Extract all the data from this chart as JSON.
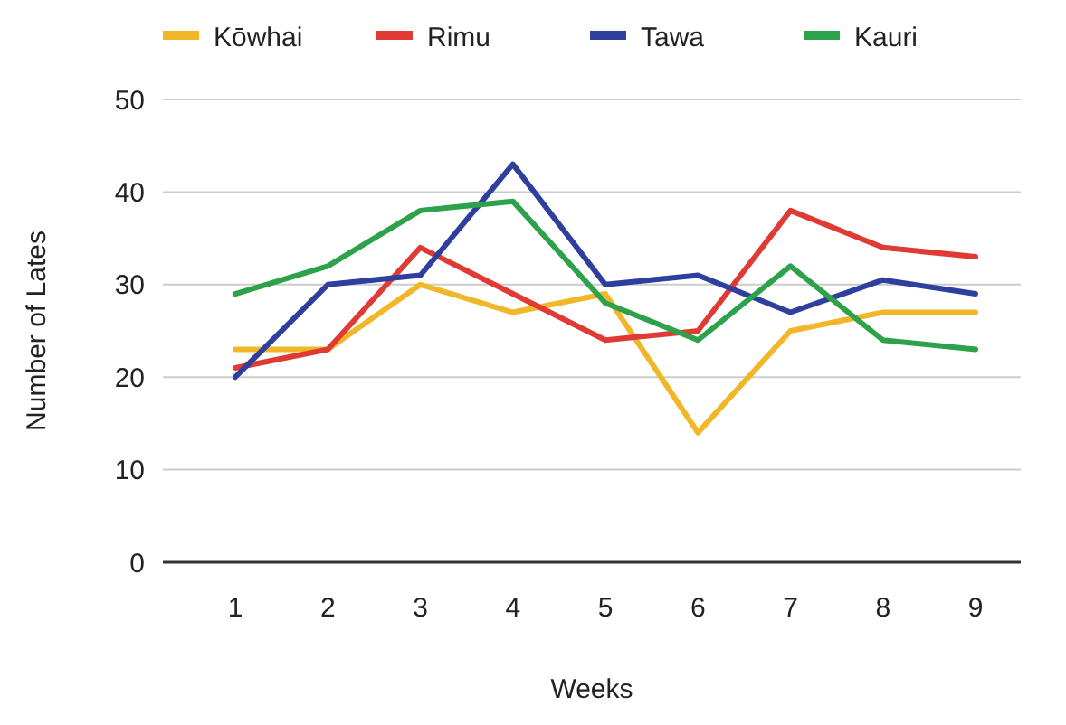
{
  "chart_data": {
    "type": "line",
    "xlabel": "Weeks",
    "ylabel": "Number of Lates",
    "categories": [
      "1",
      "2",
      "3",
      "4",
      "5",
      "6",
      "7",
      "8",
      "9"
    ],
    "series": [
      {
        "name": "Kōwhai",
        "color": "#f2b728",
        "values": [
          23,
          23,
          30,
          27,
          29,
          14,
          25,
          27,
          27
        ]
      },
      {
        "name": "Rimu",
        "color": "#e03a35",
        "values": [
          21,
          23,
          34,
          29,
          24,
          25,
          38,
          34,
          33
        ]
      },
      {
        "name": "Tawa",
        "color": "#2e3f9e",
        "values": [
          20,
          30,
          31,
          43,
          30,
          31,
          27,
          30.5,
          29
        ]
      },
      {
        "name": "Kauri",
        "color": "#2ea24a",
        "values": [
          29,
          32,
          38,
          39,
          28,
          24,
          32,
          24,
          23
        ]
      }
    ],
    "ylim": [
      0,
      50
    ],
    "yticks": [
      0,
      10,
      20,
      30,
      40,
      50
    ],
    "grid": "y",
    "legend": "top",
    "marker": "none",
    "line_style": "solid"
  }
}
